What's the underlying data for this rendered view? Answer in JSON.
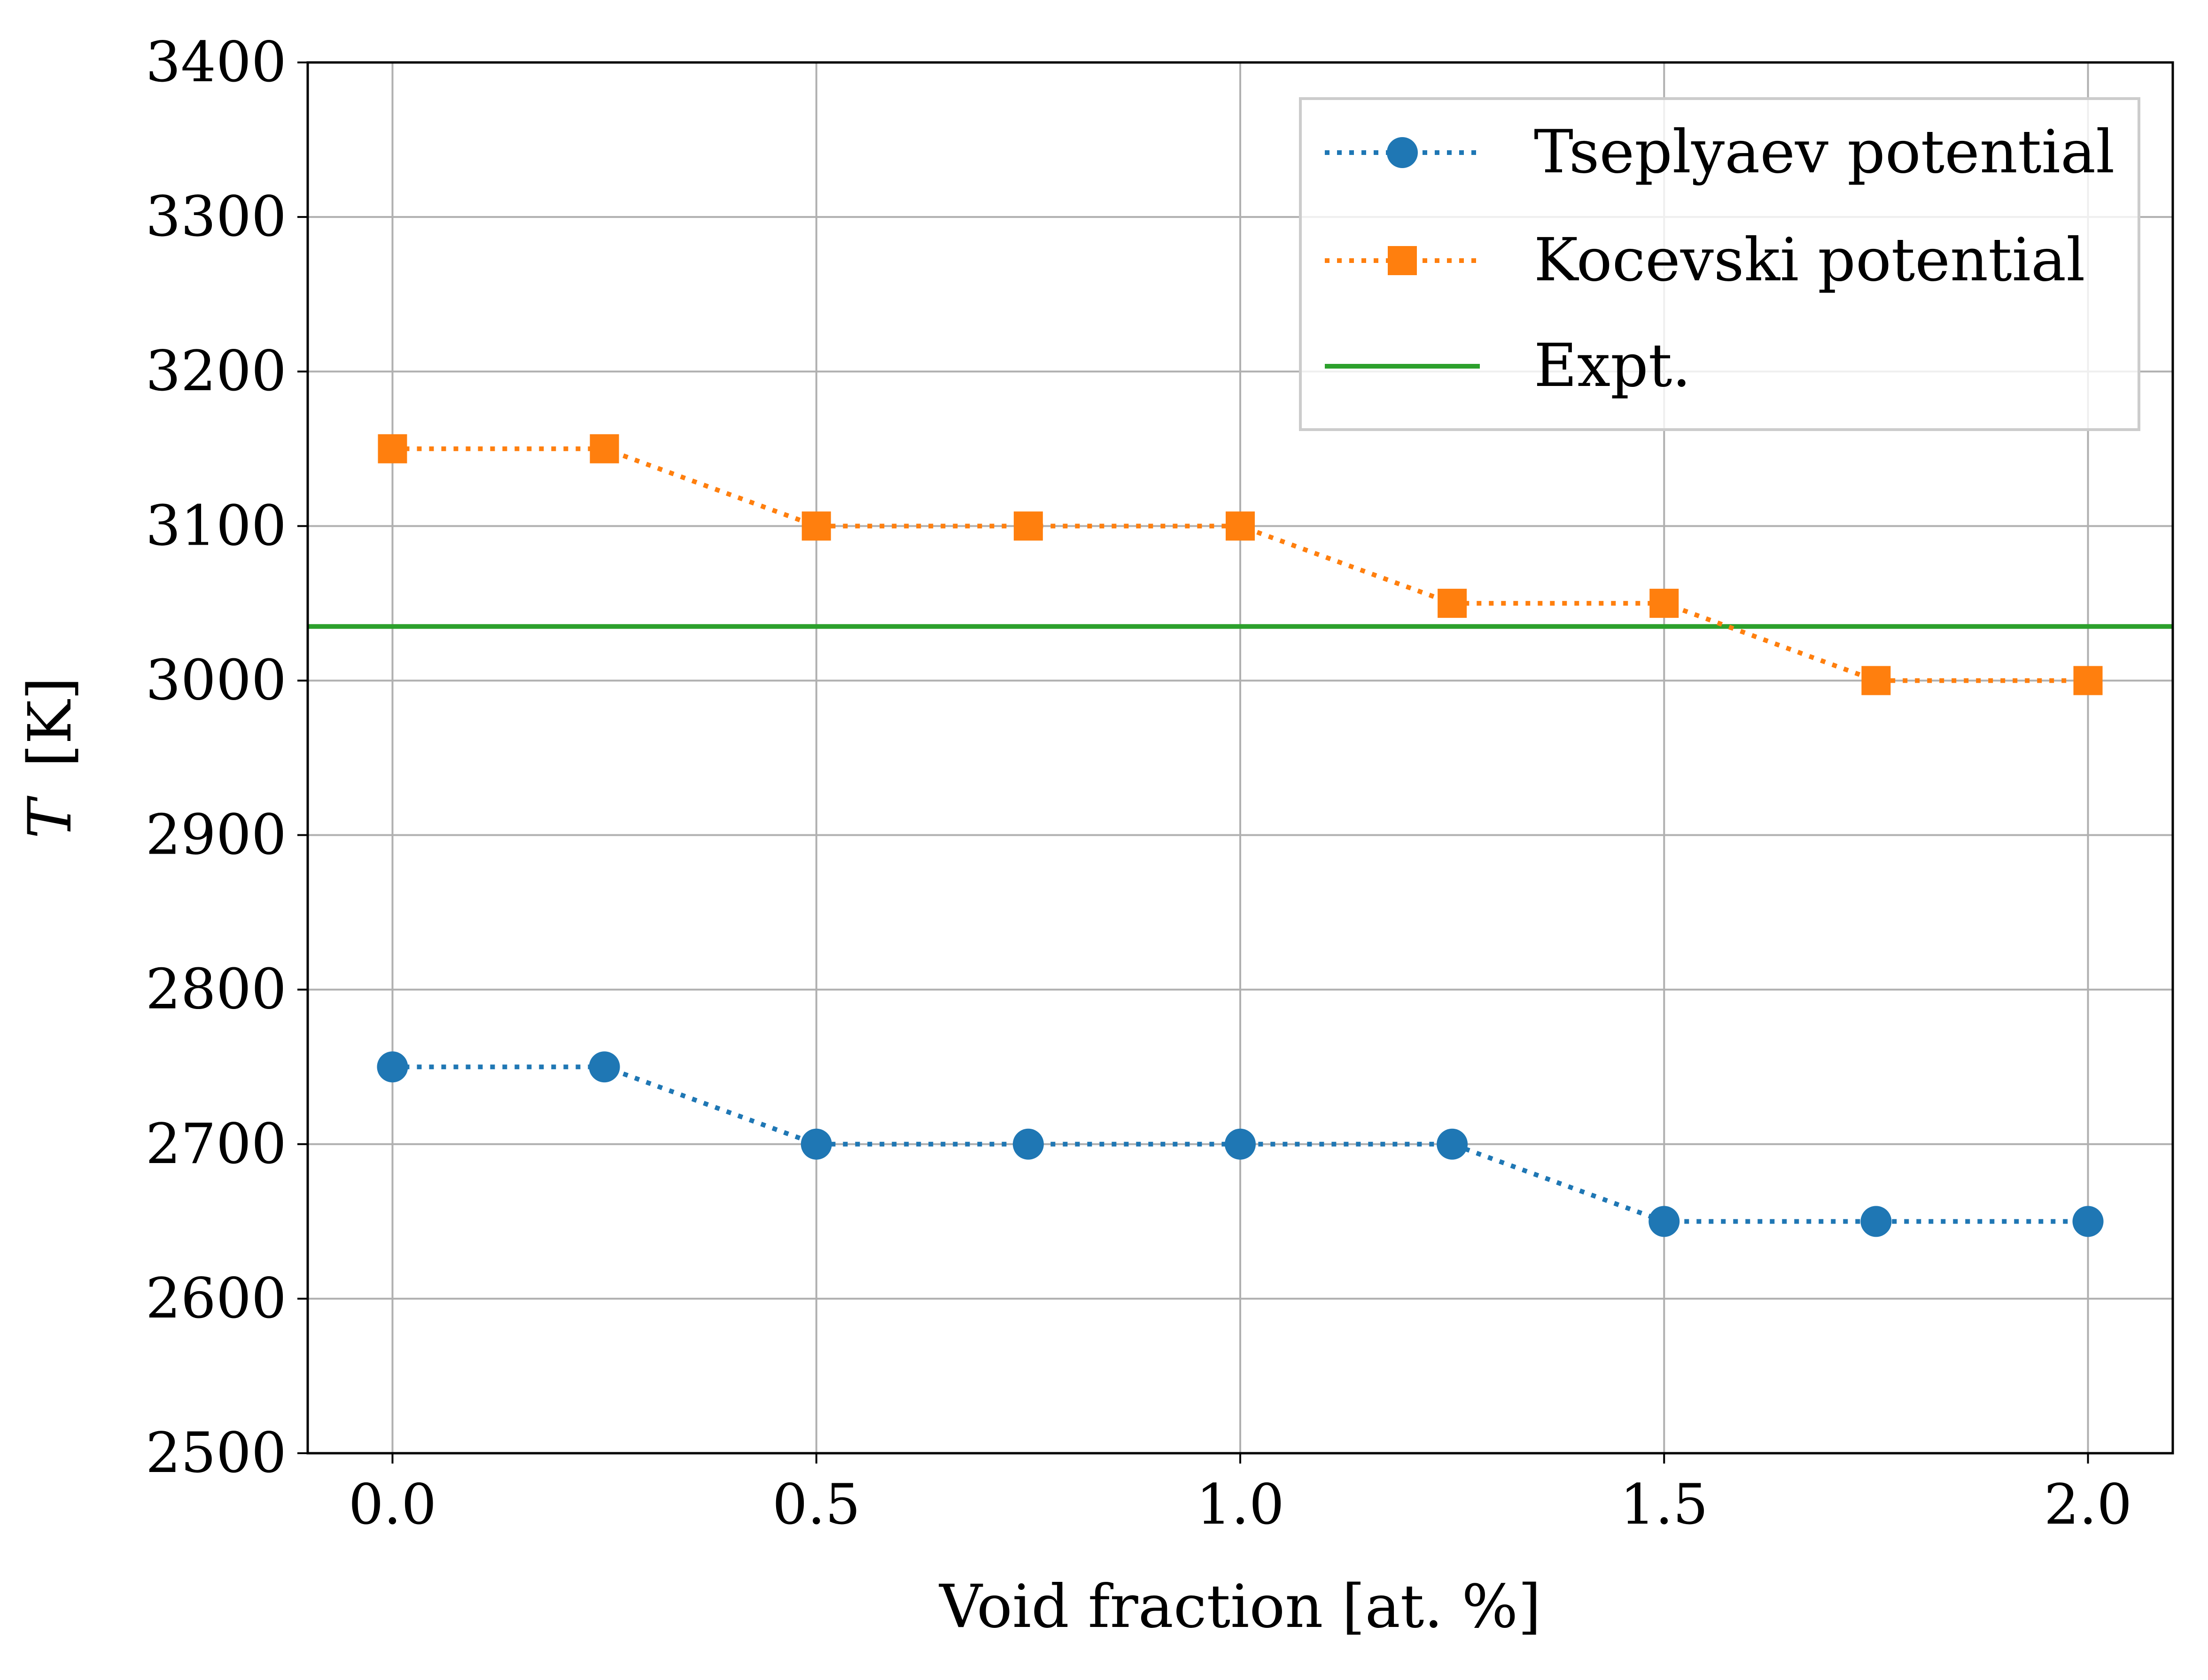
{
  "chart_data": {
    "type": "line",
    "title": "",
    "xlabel": "Void fraction [at. %]",
    "ylabel": "T [K]",
    "ylabel_symbol": "T",
    "ylabel_unit": "[K]",
    "xlim": [
      -0.1,
      2.1
    ],
    "ylim": [
      2500,
      3400
    ],
    "x_ticks": [
      0.0,
      0.5,
      1.0,
      1.5,
      2.0
    ],
    "x_tick_labels": [
      "0.0",
      "0.5",
      "1.0",
      "1.5",
      "2.0"
    ],
    "y_ticks": [
      2500,
      2600,
      2700,
      2800,
      2900,
      3000,
      3100,
      3200,
      3300,
      3400
    ],
    "y_tick_labels": [
      "2500",
      "2600",
      "2700",
      "2800",
      "2900",
      "3000",
      "3100",
      "3200",
      "3300",
      "3400"
    ],
    "grid": true,
    "legend_position": "top-right",
    "x": [
      0.0,
      0.25,
      0.5,
      0.75,
      1.0,
      1.25,
      1.5,
      1.75,
      2.0
    ],
    "series": [
      {
        "name": "Tseplyaev potential",
        "values": [
          2750,
          2750,
          2700,
          2700,
          2700,
          2700,
          2650,
          2650,
          2650
        ],
        "color": "#1f77b4",
        "marker": "circle",
        "line_style": "dotted"
      },
      {
        "name": "Kocevski potential",
        "values": [
          3150,
          3150,
          3100,
          3100,
          3100,
          3050,
          3050,
          3000,
          3000
        ],
        "color": "#ff7f0e",
        "marker": "square",
        "line_style": "dotted"
      }
    ],
    "reference_lines": [
      {
        "name": "Expt.",
        "y": 3035,
        "color": "#2ca02c",
        "line_style": "solid"
      }
    ]
  }
}
